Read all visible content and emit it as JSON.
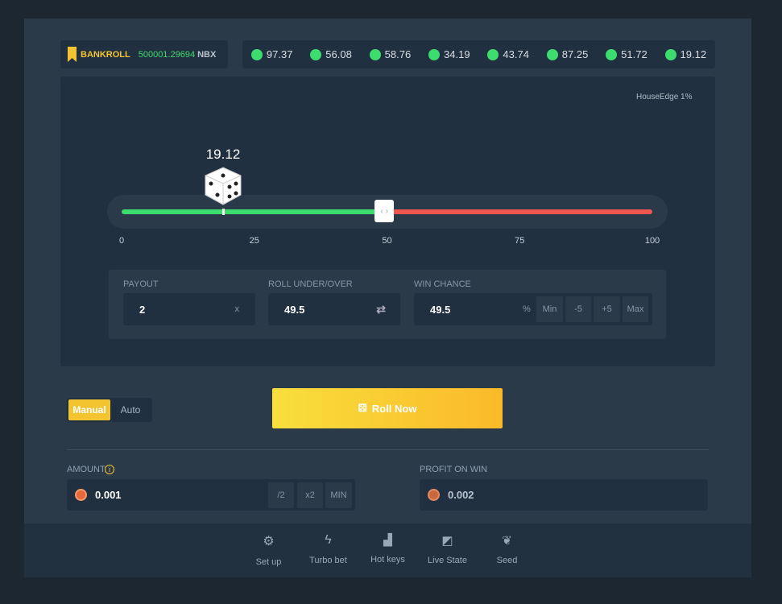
{
  "bankroll": {
    "label": "BANKROLL",
    "value": "500001.29694",
    "currency": "NBX"
  },
  "history": [
    "97.37",
    "56.08",
    "58.76",
    "34.19",
    "43.74",
    "87.25",
    "51.72",
    "19.12"
  ],
  "house_edge": "HouseEdge 1%",
  "result": {
    "value": "19.12",
    "position": 19.12
  },
  "slider": {
    "value": 49.5,
    "ticks": [
      "0",
      "25",
      "50",
      "75",
      "100"
    ],
    "win_color": "#3ddc6e",
    "lose_color": "#f0564f"
  },
  "fields": {
    "payout": {
      "label": "PAYOUT",
      "value": "2",
      "suffix": "x"
    },
    "roll": {
      "label": "ROLL UNDER/OVER",
      "value": "49.5",
      "icon": "swap-icon"
    },
    "chance": {
      "label": "WIN CHANCE",
      "value": "49.5",
      "suffix": "%",
      "buttons": [
        "Min",
        "-5",
        "+5",
        "Max"
      ]
    }
  },
  "mode": {
    "tabs": [
      "Manual",
      "Auto"
    ],
    "active": "Manual"
  },
  "roll_button": "Roll Now",
  "amount": {
    "label": "AMOUNT",
    "value": "0.001",
    "buttons": [
      "/2",
      "x2",
      "MIN"
    ]
  },
  "profit": {
    "label": "PROFIT ON WIN",
    "value": "0.002"
  },
  "footer": [
    {
      "label": "Set up",
      "icon": "gear-icon"
    },
    {
      "label": "Turbo bet",
      "icon": "bolt-icon"
    },
    {
      "label": "Hot keys",
      "icon": "keys-icon"
    },
    {
      "label": "Live State",
      "icon": "chart-icon"
    },
    {
      "label": "Seed",
      "icon": "seed-icon"
    }
  ]
}
